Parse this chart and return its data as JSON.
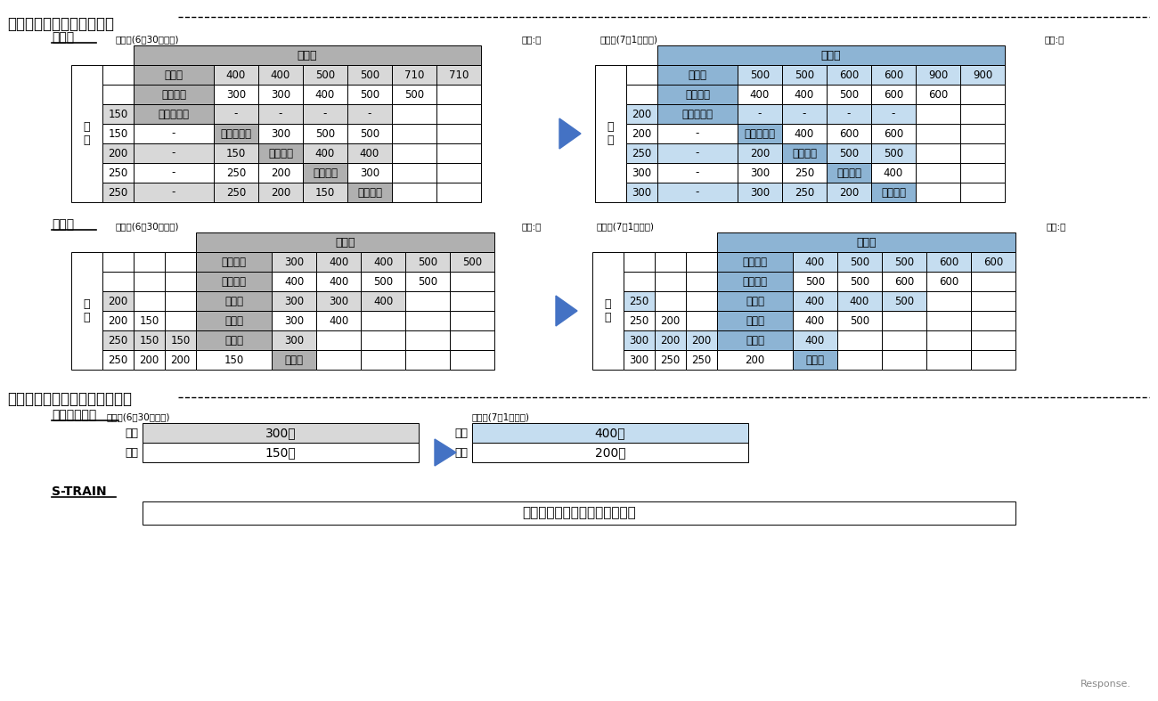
{
  "title_tokkyuu": "特急料金　改定前後の比較",
  "title_zaseki": "座席指定料金　改定前後の比較",
  "section_ikebukuro": "池袋線",
  "section_shinjuku": "新宿線",
  "section_haijima": "拝島ライナー",
  "section_strain": "S-TRAIN",
  "old_label": "旧料金(6月30日まで)",
  "new_label": "新料金(7月1日より)",
  "unit": "単位:円",
  "haijima_old_adult": "300円",
  "haijima_old_child": "150円",
  "haijima_new_adult": "400円",
  "haijima_new_child": "200円",
  "strain_text": "大人・小児とも据え置きます。",
  "color_old_header": "#b0b0b0",
  "color_old_body": "#d8d8d8",
  "color_new_header": "#8db4d4",
  "color_new_body": "#c5ddf0",
  "arrow_color": "#4472c4",
  "ik_old_rows": [
    [
      "",
      "池　袋",
      "400",
      "400",
      "500",
      "500",
      "710",
      "710"
    ],
    [
      "",
      "所　　沢",
      "300",
      "300",
      "400",
      "500",
      "500",
      ""
    ],
    [
      "150",
      "西武球場前",
      "-",
      "-",
      "-",
      "-",
      "",
      ""
    ],
    [
      "150",
      "-",
      "入　間　市",
      "300",
      "500",
      "500",
      "",
      ""
    ],
    [
      "200",
      "-",
      "150",
      "飯　　能",
      "400",
      "400",
      "",
      ""
    ],
    [
      "250",
      "-",
      "250",
      "200",
      "横　　瀬",
      "300",
      "",
      ""
    ],
    [
      "250",
      "-",
      "250",
      "200",
      "150",
      "西武秋父",
      "",
      ""
    ]
  ],
  "ik_new_rows": [
    [
      "",
      "池　袋",
      "500",
      "500",
      "600",
      "600",
      "900",
      "900"
    ],
    [
      "",
      "所　　沢",
      "400",
      "400",
      "500",
      "600",
      "600",
      ""
    ],
    [
      "200",
      "西武球場前",
      "-",
      "-",
      "-",
      "-",
      "",
      ""
    ],
    [
      "200",
      "-",
      "入　間　市",
      "400",
      "600",
      "600",
      "",
      ""
    ],
    [
      "250",
      "-",
      "200",
      "飯　　能",
      "500",
      "500",
      "",
      ""
    ],
    [
      "300",
      "-",
      "300",
      "250",
      "横　　瀬",
      "400",
      "",
      ""
    ],
    [
      "300",
      "-",
      "300",
      "250",
      "200",
      "西武秋父",
      "",
      ""
    ]
  ],
  "sj_old_rows": [
    [
      "",
      "",
      "",
      "西武新宿",
      "300",
      "400",
      "400",
      "500",
      "500"
    ],
    [
      "",
      "",
      "",
      "高田馬場",
      "400",
      "400",
      "500",
      "500",
      ""
    ],
    [
      "200",
      "",
      "",
      "東村山",
      "300",
      "300",
      "400",
      "",
      ""
    ],
    [
      "200",
      "150",
      "",
      "所　沢",
      "300",
      "400",
      "",
      "",
      ""
    ],
    [
      "250",
      "150",
      "150",
      "狭山市",
      "300",
      "",
      "",
      "",
      ""
    ],
    [
      "250",
      "200",
      "200",
      "150",
      "本川越",
      "",
      "",
      "",
      ""
    ]
  ],
  "sj_new_rows": [
    [
      "",
      "",
      "",
      "西武新宿",
      "400",
      "500",
      "500",
      "600",
      "600"
    ],
    [
      "",
      "",
      "",
      "高田馬場",
      "500",
      "500",
      "600",
      "600",
      ""
    ],
    [
      "250",
      "",
      "",
      "東村山",
      "400",
      "400",
      "500",
      "",
      ""
    ],
    [
      "250",
      "200",
      "",
      "所　沢",
      "400",
      "500",
      "",
      "",
      ""
    ],
    [
      "300",
      "200",
      "200",
      "狭山市",
      "400",
      "",
      "",
      "",
      ""
    ],
    [
      "300",
      "250",
      "250",
      "200",
      "本川越",
      "",
      "",
      "",
      ""
    ]
  ]
}
